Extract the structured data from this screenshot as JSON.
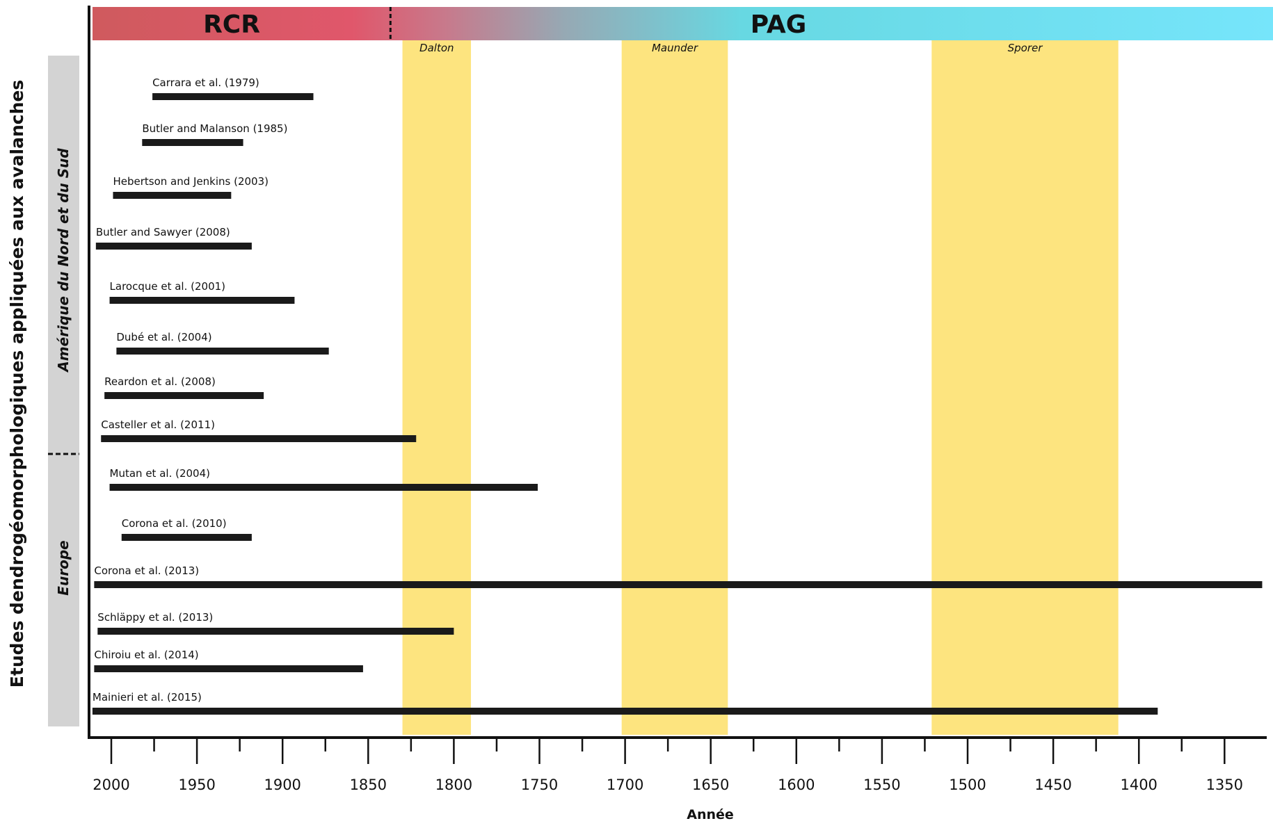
{
  "chart_data": {
    "type": "timeline",
    "xlabel": "Année",
    "ylabel": "Etudes dendrogéomorphologiques appliquées aux avalanches",
    "xlim": [
      2012,
      1326
    ],
    "x_reversed": true,
    "x_ticks": [
      2000,
      1950,
      1900,
      1850,
      1800,
      1750,
      1700,
      1650,
      1600,
      1550,
      1500,
      1450,
      1400,
      1350
    ],
    "eras": [
      {
        "name": "RCR",
        "from": 2012,
        "to": 1837,
        "color": "#d94f5c"
      },
      {
        "name": "PAG",
        "from": 1837,
        "to": 1326,
        "color": "#6ee3f2"
      }
    ],
    "era_boundary": 1837,
    "periods": [
      {
        "name": "Dalton",
        "from": 1830,
        "to": 1790
      },
      {
        "name": "Maunder",
        "from": 1702,
        "to": 1640
      },
      {
        "name": "Sporer",
        "from": 1521,
        "to": 1412
      }
    ],
    "period_color": "#fde47f",
    "regions": [
      {
        "name": "Amérique du Nord et du Sud"
      },
      {
        "name": "Europe"
      }
    ],
    "studies": [
      {
        "label": "Carrara et al. (1979)",
        "start": 1976,
        "end": 1882
      },
      {
        "label": "Butler and Malanson (1985)",
        "start": 1982,
        "end": 1923
      },
      {
        "label": "Hebertson and Jenkins (2003)",
        "start": 1999,
        "end": 1930
      },
      {
        "label": "Butler and Sawyer (2008)",
        "start": 2009,
        "end": 1918
      },
      {
        "label": "Larocque et al. (2001)",
        "start": 2001,
        "end": 1893
      },
      {
        "label": "Dubé et al. (2004)",
        "start": 1997,
        "end": 1873
      },
      {
        "label": "Reardon et al. (2008)",
        "start": 2004,
        "end": 1911
      },
      {
        "label": "Casteller et al. (2011)",
        "start": 2006,
        "end": 1822
      },
      {
        "label": "Mutan et al. (2004)",
        "start": 2001,
        "end": 1751
      },
      {
        "label": "Corona et al. (2010)",
        "start": 1994,
        "end": 1918
      },
      {
        "label": "Corona et al. (2013)",
        "start": 2010,
        "end": 1328
      },
      {
        "label": "Schläppy et al. (2013)",
        "start": 2008,
        "end": 1800
      },
      {
        "label": "Chiroiu et al. (2014)",
        "start": 2010,
        "end": 1853
      },
      {
        "label": "Mainieri et al. (2015)",
        "start": 2011,
        "end": 1389
      }
    ]
  }
}
